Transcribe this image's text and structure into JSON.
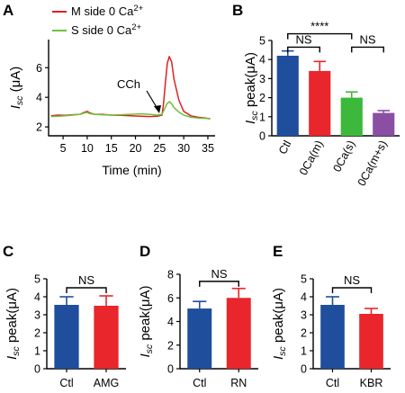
{
  "colors": {
    "blue": "#1f4e9c",
    "red": "#e8262b",
    "green": "#3cb83c",
    "purple": "#8a4fa3",
    "m_line": "#e02020",
    "s_line": "#6cc23a"
  },
  "chart_data": [
    {
      "id": "A",
      "type": "line",
      "panel_label": "A",
      "xlabel": "Time (min)",
      "ylabel_main": "I",
      "ylabel_sub": "sc",
      "ylabel_unit": " (μA)",
      "xlim": [
        2,
        36.5
      ],
      "ylim": [
        1.4,
        7.9
      ],
      "xticks": [
        5,
        10,
        15,
        20,
        25,
        30,
        35
      ],
      "yticks": [
        2,
        4,
        6
      ],
      "annotation": "CCh",
      "legend": [
        {
          "name": "M side 0 Ca",
          "sup": "2+",
          "color_key": "m_line"
        },
        {
          "name": "S side 0 Ca",
          "sup": "2+",
          "color_key": "s_line"
        }
      ],
      "series": [
        {
          "name": "M side 0 Ca2+",
          "color_key": "m_line",
          "x": [
            2.5,
            4,
            5.5,
            7,
            8.5,
            9.5,
            10,
            10.5,
            11.5,
            13,
            15,
            17,
            19,
            21,
            23,
            24.5,
            25.5,
            25.8,
            26.2,
            26.6,
            27,
            27.5,
            28,
            29,
            30,
            31.5,
            33,
            34.5,
            35.5
          ],
          "y": [
            2.75,
            2.8,
            2.78,
            2.82,
            2.85,
            3.0,
            3.05,
            2.95,
            2.85,
            2.85,
            2.8,
            2.78,
            2.75,
            2.72,
            2.7,
            2.72,
            2.8,
            3.5,
            5.0,
            6.3,
            6.75,
            6.4,
            5.2,
            3.8,
            3.05,
            2.75,
            2.65,
            2.6,
            2.55
          ]
        },
        {
          "name": "S side 0 Ca2+",
          "color_key": "s_line",
          "x": [
            2.5,
            4,
            5.5,
            7,
            8.5,
            9.5,
            10,
            10.5,
            11.5,
            13,
            15,
            17,
            19,
            21,
            23,
            24.5,
            25.5,
            26,
            26.5,
            27,
            27.5,
            28,
            29,
            30,
            31.5,
            33,
            34.5,
            35.5
          ],
          "y": [
            2.7,
            2.72,
            2.75,
            2.8,
            2.85,
            2.95,
            2.98,
            2.9,
            2.85,
            2.82,
            2.8,
            2.82,
            2.85,
            2.88,
            2.85,
            2.8,
            2.85,
            3.2,
            3.55,
            3.7,
            3.55,
            3.3,
            3.0,
            2.8,
            2.65,
            2.6,
            2.58,
            2.55
          ]
        }
      ]
    },
    {
      "id": "B",
      "type": "bar",
      "panel_label": "B",
      "ylabel_main": "I",
      "ylabel_sub": "sc",
      "ylabel_unit": " peak(μA)",
      "ylim": [
        0,
        5
      ],
      "yticks": [
        0,
        1,
        2,
        3,
        4,
        5
      ],
      "categories": [
        "Ctl",
        "0Ca(m)",
        "0Ca(s)",
        "0Ca(m+s)"
      ],
      "values": [
        4.2,
        3.4,
        2.0,
        1.2
      ],
      "errors": [
        0.25,
        0.5,
        0.3,
        0.12
      ],
      "color_keys": [
        "blue",
        "red",
        "green",
        "purple"
      ],
      "sig": [
        {
          "label": "NS",
          "from": 0,
          "to": 1,
          "y": 4.65
        },
        {
          "label": "NS",
          "from": 2,
          "to": 3,
          "y": 4.65
        },
        {
          "label": "****",
          "from": 0,
          "to": 2,
          "y": 5.35
        }
      ]
    },
    {
      "id": "C",
      "type": "bar",
      "panel_label": "C",
      "ylabel_main": "I",
      "ylabel_sub": "sc",
      "ylabel_unit": " peak(μA)",
      "ylim": [
        0,
        5
      ],
      "yticks": [
        0,
        1,
        2,
        3,
        4,
        5
      ],
      "categories": [
        "Ctl",
        "AMG"
      ],
      "values": [
        3.55,
        3.5
      ],
      "errors": [
        0.45,
        0.55
      ],
      "color_keys": [
        "blue",
        "red"
      ],
      "sig": [
        {
          "label": "NS",
          "from": 0,
          "to": 1,
          "y": 4.5
        }
      ]
    },
    {
      "id": "D",
      "type": "bar",
      "panel_label": "D",
      "ylabel_main": "I",
      "ylabel_sub": "sc",
      "ylabel_unit": " peak(μA)",
      "ylim": [
        0,
        8
      ],
      "yticks": [
        0,
        2,
        4,
        6,
        8
      ],
      "categories": [
        "Ctl",
        "RN"
      ],
      "values": [
        5.1,
        6.0
      ],
      "errors": [
        0.6,
        0.8
      ],
      "color_keys": [
        "blue",
        "red"
      ],
      "sig": [
        {
          "label": "NS",
          "from": 0,
          "to": 1,
          "y": 7.4
        }
      ]
    },
    {
      "id": "E",
      "type": "bar",
      "panel_label": "E",
      "ylabel_main": "I",
      "ylabel_sub": "sc",
      "ylabel_unit": " peak(μA)",
      "ylim": [
        0,
        5
      ],
      "yticks": [
        0,
        1,
        2,
        3,
        4,
        5
      ],
      "categories": [
        "Ctl",
        "KBR"
      ],
      "values": [
        3.55,
        3.05
      ],
      "errors": [
        0.45,
        0.3
      ],
      "color_keys": [
        "blue",
        "red"
      ],
      "sig": [
        {
          "label": "NS",
          "from": 0,
          "to": 1,
          "y": 4.5
        }
      ]
    }
  ]
}
